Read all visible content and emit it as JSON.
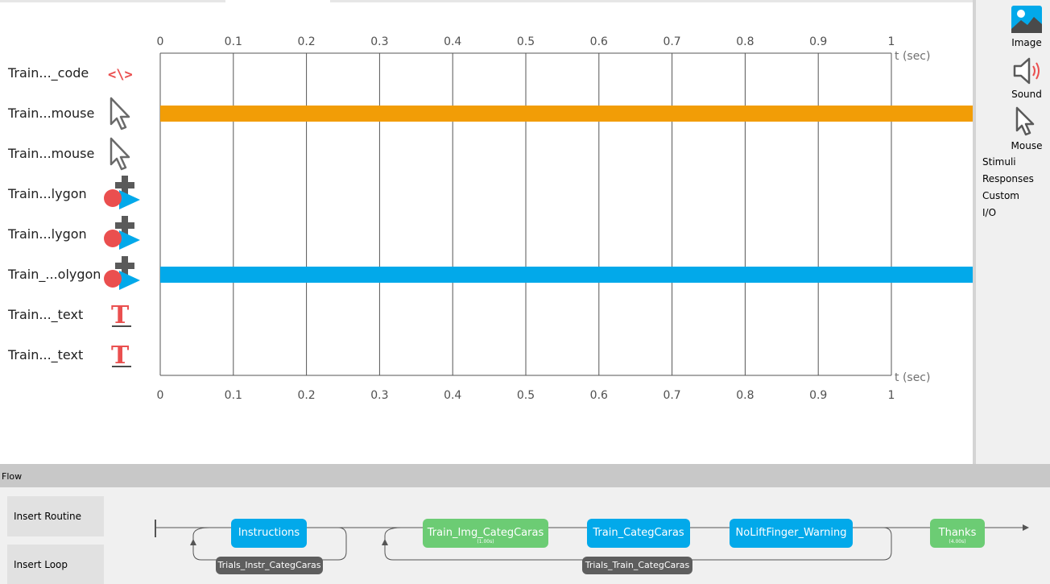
{
  "routine": {
    "components": [
      {
        "label": "Train..._code",
        "icon": "code-icon"
      },
      {
        "label": "Train...mouse",
        "icon": "mouse-cursor-icon"
      },
      {
        "label": "Train...mouse",
        "icon": "mouse-cursor-icon"
      },
      {
        "label": "Train...lygon",
        "icon": "polygon-icon"
      },
      {
        "label": "Train...lygon",
        "icon": "polygon-icon"
      },
      {
        "label": "Train_...olygon",
        "icon": "polygon-icon"
      },
      {
        "label": "Train..._text",
        "icon": "text-icon"
      },
      {
        "label": "Train..._text",
        "icon": "text-icon"
      }
    ],
    "timeline": {
      "ticks": [
        "0",
        "0.1",
        "0.2",
        "0.3",
        "0.4",
        "0.5",
        "0.6",
        "0.7",
        "0.8",
        "0.9",
        "1"
      ],
      "axis_label_top": "t (sec)",
      "axis_label_bottom": "t (sec)",
      "bars": [
        {
          "row": 1,
          "start": 0,
          "color": "#f29d06"
        },
        {
          "row": 5,
          "start": 0,
          "color": "#02a9ea"
        }
      ]
    }
  },
  "components_panel": {
    "buttons": [
      {
        "label": "Image",
        "icon": "image-icon"
      },
      {
        "label": "Sound",
        "icon": "sound-icon"
      },
      {
        "label": "Mouse",
        "icon": "mouse-cursor-icon"
      }
    ],
    "categories": [
      "Stimuli",
      "Responses",
      "Custom",
      "I/O"
    ]
  },
  "flow": {
    "title": "Flow",
    "insert_routine": "Insert Routine",
    "insert_loop": "Insert Loop",
    "routines": [
      {
        "name": "Instructions",
        "duration": "",
        "color": "blue"
      },
      {
        "name": "Train_Img_CategCaras",
        "duration": "(1.00s)",
        "color": "green"
      },
      {
        "name": "Train_CategCaras",
        "duration": "",
        "color": "blue"
      },
      {
        "name": "NoLiftFinger_Warning",
        "duration": "",
        "color": "blue"
      },
      {
        "name": "Thanks",
        "duration": "(4.00s)",
        "color": "green"
      }
    ],
    "loops": [
      {
        "name": "Trials_Instr_CategCaras"
      },
      {
        "name": "Trials_Train_CategCaras"
      }
    ]
  },
  "colors": {
    "orange_bar": "#f29d06",
    "blue_bar": "#02a9ea",
    "routine_blue": "#02a9ea",
    "routine_green": "#6ccc74",
    "loop_gray": "#5e5e5e",
    "icon_red": "#ea4f4f"
  }
}
